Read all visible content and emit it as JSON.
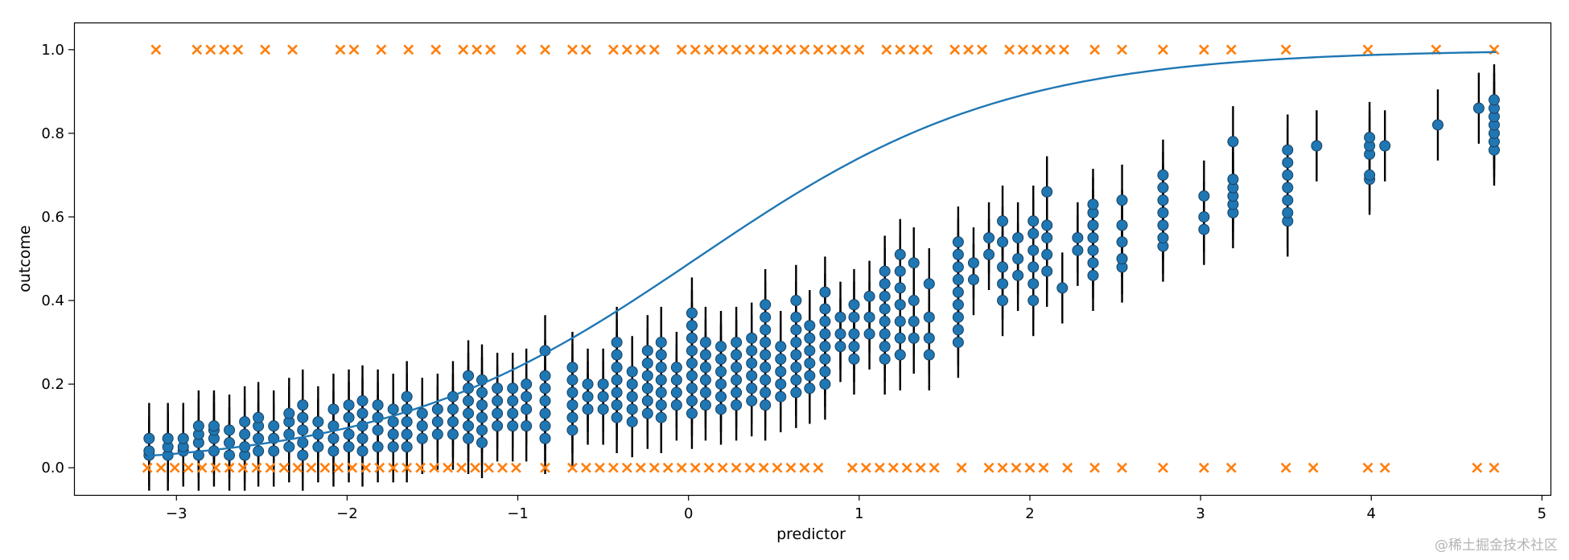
{
  "chart_data": {
    "type": "scatter",
    "xlabel": "predictor",
    "ylabel": "outcome",
    "xlim": [
      -3.6,
      5.05
    ],
    "ylim": [
      -0.065,
      1.065
    ],
    "xticks": [
      -3,
      -2,
      -1,
      0,
      1,
      2,
      3,
      4,
      5
    ],
    "xtick_labels": [
      "−3",
      "−2",
      "−1",
      "0",
      "1",
      "2",
      "3",
      "4",
      "5"
    ],
    "yticks": [
      0.0,
      0.2,
      0.4,
      0.6,
      0.8,
      1.0
    ],
    "ytick_labels": [
      "0.0",
      "0.2",
      "0.4",
      "0.6",
      "0.8",
      "1.0"
    ],
    "grid": false,
    "colors": {
      "curve": "#1f77b4",
      "points": "#1f77b4",
      "observed": "#ff7f0e",
      "errorbar": "#000000"
    },
    "series": [
      {
        "type": "line",
        "logistic": {
          "intercept": -0.05,
          "slope": 1.1
        },
        "x_range": [
          -3.17,
          4.73
        ]
      },
      {
        "type": "scatter_errorbar",
        "marker": "o",
        "errorbar_halfwidth": 0.085,
        "groups": [
          {
            "x": -3.16,
            "y": [
              0.03,
              0.04,
              0.07
            ]
          },
          {
            "x": -3.05,
            "y": [
              0.03,
              0.05,
              0.07
            ]
          },
          {
            "x": -2.96,
            "y": [
              0.04,
              0.05,
              0.07
            ]
          },
          {
            "x": -2.87,
            "y": [
              0.03,
              0.06,
              0.08,
              0.1
            ]
          },
          {
            "x": -2.78,
            "y": [
              0.04,
              0.07,
              0.09,
              0.1
            ]
          },
          {
            "x": -2.69,
            "y": [
              0.03,
              0.06,
              0.09
            ]
          },
          {
            "x": -2.6,
            "y": [
              0.03,
              0.05,
              0.08,
              0.11
            ]
          },
          {
            "x": -2.52,
            "y": [
              0.04,
              0.07,
              0.1,
              0.12
            ]
          },
          {
            "x": -2.43,
            "y": [
              0.04,
              0.07,
              0.1
            ]
          },
          {
            "x": -2.34,
            "y": [
              0.05,
              0.08,
              0.11,
              0.13
            ]
          },
          {
            "x": -2.26,
            "y": [
              0.03,
              0.06,
              0.09,
              0.12,
              0.15
            ]
          },
          {
            "x": -2.17,
            "y": [
              0.05,
              0.08,
              0.11
            ]
          },
          {
            "x": -2.08,
            "y": [
              0.04,
              0.07,
              0.1,
              0.14
            ]
          },
          {
            "x": -1.99,
            "y": [
              0.05,
              0.08,
              0.12,
              0.15
            ]
          },
          {
            "x": -1.91,
            "y": [
              0.04,
              0.07,
              0.1,
              0.13,
              0.16
            ]
          },
          {
            "x": -1.82,
            "y": [
              0.05,
              0.09,
              0.12,
              0.15
            ]
          },
          {
            "x": -1.73,
            "y": [
              0.05,
              0.08,
              0.11,
              0.14
            ]
          },
          {
            "x": -1.65,
            "y": [
              0.05,
              0.08,
              0.11,
              0.14,
              0.17
            ]
          },
          {
            "x": -1.56,
            "y": [
              0.07,
              0.1,
              0.13
            ]
          },
          {
            "x": -1.47,
            "y": [
              0.08,
              0.11,
              0.14
            ]
          },
          {
            "x": -1.38,
            "y": [
              0.08,
              0.11,
              0.14,
              0.17
            ]
          },
          {
            "x": -1.29,
            "y": [
              0.07,
              0.1,
              0.13,
              0.16,
              0.19,
              0.22
            ]
          },
          {
            "x": -1.21,
            "y": [
              0.06,
              0.09,
              0.12,
              0.15,
              0.18,
              0.21
            ]
          },
          {
            "x": -1.12,
            "y": [
              0.1,
              0.13,
              0.16,
              0.19
            ]
          },
          {
            "x": -1.03,
            "y": [
              0.1,
              0.13,
              0.16,
              0.19
            ]
          },
          {
            "x": -0.95,
            "y": [
              0.1,
              0.14,
              0.17,
              0.2
            ]
          },
          {
            "x": -0.84,
            "y": [
              0.07,
              0.1,
              0.13,
              0.16,
              0.19,
              0.22,
              0.28
            ]
          },
          {
            "x": -0.68,
            "y": [
              0.09,
              0.12,
              0.15,
              0.18,
              0.21,
              0.24
            ]
          },
          {
            "x": -0.59,
            "y": [
              0.14,
              0.17,
              0.2
            ]
          },
          {
            "x": -0.5,
            "y": [
              0.14,
              0.17,
              0.2
            ]
          },
          {
            "x": -0.42,
            "y": [
              0.12,
              0.15,
              0.18,
              0.21,
              0.24,
              0.27,
              0.3
            ]
          },
          {
            "x": -0.33,
            "y": [
              0.11,
              0.14,
              0.17,
              0.2,
              0.23
            ]
          },
          {
            "x": -0.24,
            "y": [
              0.13,
              0.16,
              0.19,
              0.22,
              0.25,
              0.28
            ]
          },
          {
            "x": -0.16,
            "y": [
              0.12,
              0.15,
              0.18,
              0.21,
              0.24,
              0.27,
              0.3
            ]
          },
          {
            "x": -0.07,
            "y": [
              0.15,
              0.18,
              0.21,
              0.24
            ]
          },
          {
            "x": 0.02,
            "y": [
              0.13,
              0.16,
              0.19,
              0.22,
              0.25,
              0.28,
              0.31,
              0.34,
              0.37
            ]
          },
          {
            "x": 0.1,
            "y": [
              0.15,
              0.18,
              0.21,
              0.24,
              0.27,
              0.3
            ]
          },
          {
            "x": 0.19,
            "y": [
              0.14,
              0.17,
              0.2,
              0.23,
              0.26,
              0.29
            ]
          },
          {
            "x": 0.28,
            "y": [
              0.15,
              0.18,
              0.21,
              0.24,
              0.27,
              0.3
            ]
          },
          {
            "x": 0.37,
            "y": [
              0.16,
              0.19,
              0.22,
              0.25,
              0.28,
              0.31
            ]
          },
          {
            "x": 0.45,
            "y": [
              0.15,
              0.18,
              0.21,
              0.24,
              0.27,
              0.3,
              0.33,
              0.36,
              0.39
            ]
          },
          {
            "x": 0.54,
            "y": [
              0.17,
              0.2,
              0.23,
              0.26,
              0.29
            ]
          },
          {
            "x": 0.63,
            "y": [
              0.18,
              0.21,
              0.24,
              0.27,
              0.3,
              0.33,
              0.36,
              0.4
            ]
          },
          {
            "x": 0.71,
            "y": [
              0.19,
              0.22,
              0.25,
              0.28,
              0.31,
              0.34
            ]
          },
          {
            "x": 0.8,
            "y": [
              0.2,
              0.23,
              0.26,
              0.29,
              0.32,
              0.35,
              0.38,
              0.42
            ]
          },
          {
            "x": 0.89,
            "y": [
              0.29,
              0.32,
              0.36
            ]
          },
          {
            "x": 0.97,
            "y": [
              0.26,
              0.29,
              0.32,
              0.36,
              0.39
            ]
          },
          {
            "x": 1.06,
            "y": [
              0.32,
              0.36,
              0.41
            ]
          },
          {
            "x": 1.15,
            "y": [
              0.26,
              0.29,
              0.32,
              0.35,
              0.38,
              0.41,
              0.44,
              0.47
            ]
          },
          {
            "x": 1.24,
            "y": [
              0.27,
              0.31,
              0.35,
              0.39,
              0.43,
              0.47,
              0.51
            ]
          },
          {
            "x": 1.32,
            "y": [
              0.31,
              0.35,
              0.4,
              0.49
            ]
          },
          {
            "x": 1.41,
            "y": [
              0.27,
              0.31,
              0.36,
              0.44
            ]
          },
          {
            "x": 1.58,
            "y": [
              0.3,
              0.33,
              0.36,
              0.39,
              0.42,
              0.45,
              0.48,
              0.51,
              0.54
            ]
          },
          {
            "x": 1.67,
            "y": [
              0.45,
              0.49
            ]
          },
          {
            "x": 1.76,
            "y": [
              0.51,
              0.55
            ]
          },
          {
            "x": 1.84,
            "y": [
              0.4,
              0.44,
              0.48,
              0.54,
              0.59
            ]
          },
          {
            "x": 1.93,
            "y": [
              0.46,
              0.5,
              0.55
            ]
          },
          {
            "x": 2.02,
            "y": [
              0.4,
              0.44,
              0.48,
              0.52,
              0.56,
              0.59
            ]
          },
          {
            "x": 2.1,
            "y": [
              0.47,
              0.51,
              0.55,
              0.58,
              0.66
            ]
          },
          {
            "x": 2.19,
            "y": [
              0.43
            ]
          },
          {
            "x": 2.28,
            "y": [
              0.52,
              0.55
            ]
          },
          {
            "x": 2.37,
            "y": [
              0.46,
              0.49,
              0.52,
              0.55,
              0.58,
              0.61,
              0.63
            ]
          },
          {
            "x": 2.54,
            "y": [
              0.48,
              0.5,
              0.54,
              0.58,
              0.64
            ]
          },
          {
            "x": 2.78,
            "y": [
              0.53,
              0.55,
              0.58,
              0.61,
              0.64,
              0.67,
              0.7
            ]
          },
          {
            "x": 3.02,
            "y": [
              0.57,
              0.6,
              0.65
            ]
          },
          {
            "x": 3.19,
            "y": [
              0.61,
              0.63,
              0.65,
              0.67,
              0.69,
              0.78
            ]
          },
          {
            "x": 3.51,
            "y": [
              0.59,
              0.61,
              0.64,
              0.67,
              0.7,
              0.73,
              0.76
            ]
          },
          {
            "x": 3.68,
            "y": [
              0.77
            ]
          },
          {
            "x": 3.99,
            "y": [
              0.69,
              0.7,
              0.75,
              0.77,
              0.79
            ]
          },
          {
            "x": 4.08,
            "y": [
              0.77
            ]
          },
          {
            "x": 4.39,
            "y": [
              0.82
            ]
          },
          {
            "x": 4.63,
            "y": [
              0.86
            ]
          },
          {
            "x": 4.72,
            "y": [
              0.76,
              0.78,
              0.8,
              0.82,
              0.84,
              0.86,
              0.88
            ]
          }
        ]
      },
      {
        "type": "scatter",
        "marker": "x",
        "y0_x": [
          -3.17,
          -3.09,
          -3.01,
          -2.93,
          -2.85,
          -2.77,
          -2.69,
          -2.61,
          -2.53,
          -2.45,
          -2.37,
          -2.29,
          -2.21,
          -2.13,
          -2.05,
          -1.97,
          -1.89,
          -1.81,
          -1.73,
          -1.65,
          -1.57,
          -1.49,
          -1.41,
          -1.33,
          -1.25,
          -1.17,
          -1.09,
          -1.01,
          -0.84,
          -0.68,
          -0.6,
          -0.52,
          -0.44,
          -0.36,
          -0.28,
          -0.2,
          -0.12,
          -0.04,
          0.04,
          0.12,
          0.2,
          0.28,
          0.36,
          0.44,
          0.52,
          0.6,
          0.68,
          0.76,
          0.96,
          1.04,
          1.12,
          1.2,
          1.28,
          1.36,
          1.44,
          1.6,
          1.76,
          1.84,
          1.92,
          2.0,
          2.08,
          2.22,
          2.38,
          2.54,
          2.78,
          3.02,
          3.18,
          3.5,
          3.66,
          3.98,
          4.08,
          4.62,
          4.72
        ],
        "y1_x": [
          -3.12,
          -2.88,
          -2.8,
          -2.72,
          -2.64,
          -2.48,
          -2.32,
          -2.04,
          -1.96,
          -1.8,
          -1.64,
          -1.48,
          -1.32,
          -1.24,
          -1.16,
          -0.98,
          -0.84,
          -0.68,
          -0.6,
          -0.44,
          -0.36,
          -0.28,
          -0.2,
          -0.04,
          0.04,
          0.12,
          0.2,
          0.28,
          0.36,
          0.44,
          0.52,
          0.6,
          0.68,
          0.76,
          0.84,
          0.92,
          1.0,
          1.16,
          1.24,
          1.32,
          1.4,
          1.56,
          1.64,
          1.72,
          1.88,
          1.96,
          2.04,
          2.12,
          2.2,
          2.38,
          2.54,
          2.78,
          3.02,
          3.18,
          3.5,
          3.98,
          4.38,
          4.72
        ]
      }
    ]
  },
  "watermark": "@稀土掘金技术社区"
}
